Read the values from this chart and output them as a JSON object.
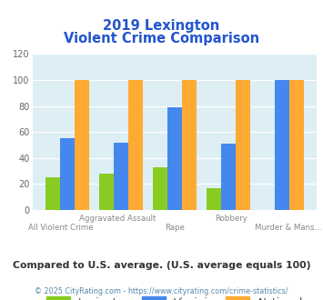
{
  "title_line1": "2019 Lexington",
  "title_line2": "Violent Crime Comparison",
  "categories": [
    "All Violent Crime",
    "Aggravated Assault",
    "Rape",
    "Robbery",
    "Murder & Mans..."
  ],
  "lexington": [
    25,
    28,
    33,
    17,
    0
  ],
  "virginia": [
    55,
    52,
    79,
    51,
    100
  ],
  "national": [
    100,
    100,
    100,
    100,
    100
  ],
  "colors": {
    "lexington": "#88cc22",
    "virginia": "#4488ee",
    "national": "#ffaa33"
  },
  "ylim": [
    0,
    120
  ],
  "yticks": [
    0,
    20,
    40,
    60,
    80,
    100,
    120
  ],
  "title_color": "#2255cc",
  "bg_color": "#ddeef5",
  "footer_text": "Compared to U.S. average. (U.S. average equals 100)",
  "copyright_text": "© 2025 CityRating.com - https://www.cityrating.com/crime-statistics/",
  "top_labels": [
    "",
    "Aggravated Assault",
    "",
    "Robbery",
    ""
  ],
  "bottom_labels": [
    "All Violent Crime",
    "",
    "Rape",
    "",
    "Murder & Mans..."
  ],
  "footer_color": "#333333",
  "copyright_color": "#5588aa"
}
